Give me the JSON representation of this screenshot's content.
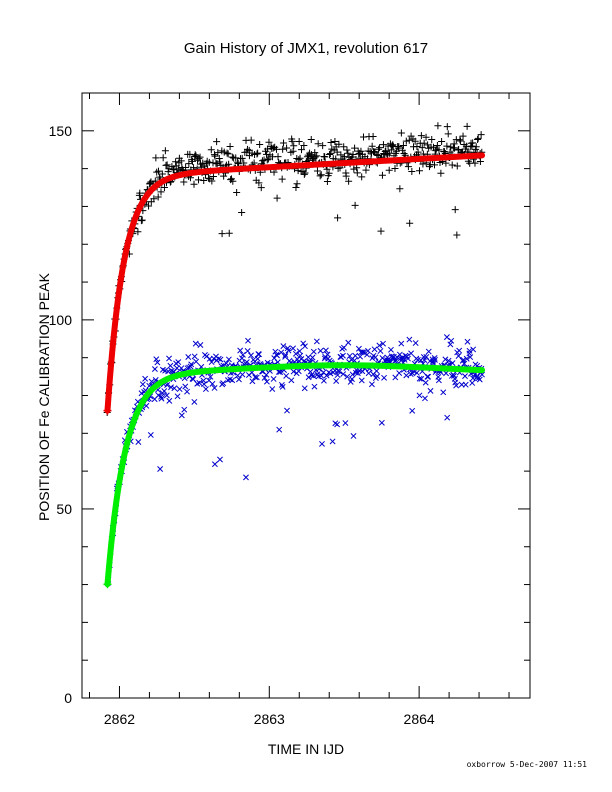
{
  "chart_data": {
    "type": "scatter",
    "title": "Gain History of JMX1, revolution 617",
    "xlabel": "TIME IN IJD",
    "ylabel": "POSITION OF Fe CALIBRATION PEAK",
    "xlim": [
      2861.75,
      2864.74
    ],
    "ylim": [
      0,
      160
    ],
    "xticks": [
      2862,
      2863,
      2864
    ],
    "yticks": [
      0,
      50,
      100,
      150
    ],
    "x_start": 2861.92,
    "x_end": 2864.42,
    "series": [
      {
        "marker": "plus",
        "color": "#000000",
        "saturation_curve": {
          "amplitude": 138,
          "start_value": 76,
          "tau": 0.11,
          "slope": 2.2,
          "offset_peak": 0,
          "offset_peak_at": 0
        },
        "scatter_sigma": 2.6,
        "count": 520
      },
      {
        "marker": "x",
        "color": "#0000cc",
        "saturation_curve": {
          "amplitude": 86,
          "start_value": 30,
          "tau": 0.12,
          "slope": 0,
          "offset_peak": 2,
          "offset_peak_at": 2863.5
        },
        "scatter_sigma": 2.8,
        "count": 520
      },
      {
        "marker": "curve",
        "color": "#ee0000",
        "fit_of": 0
      },
      {
        "marker": "curve",
        "color": "#00ee00",
        "fit_of": 1
      }
    ]
  },
  "footer": "oxborrow  5-Dec-2007 11:51"
}
